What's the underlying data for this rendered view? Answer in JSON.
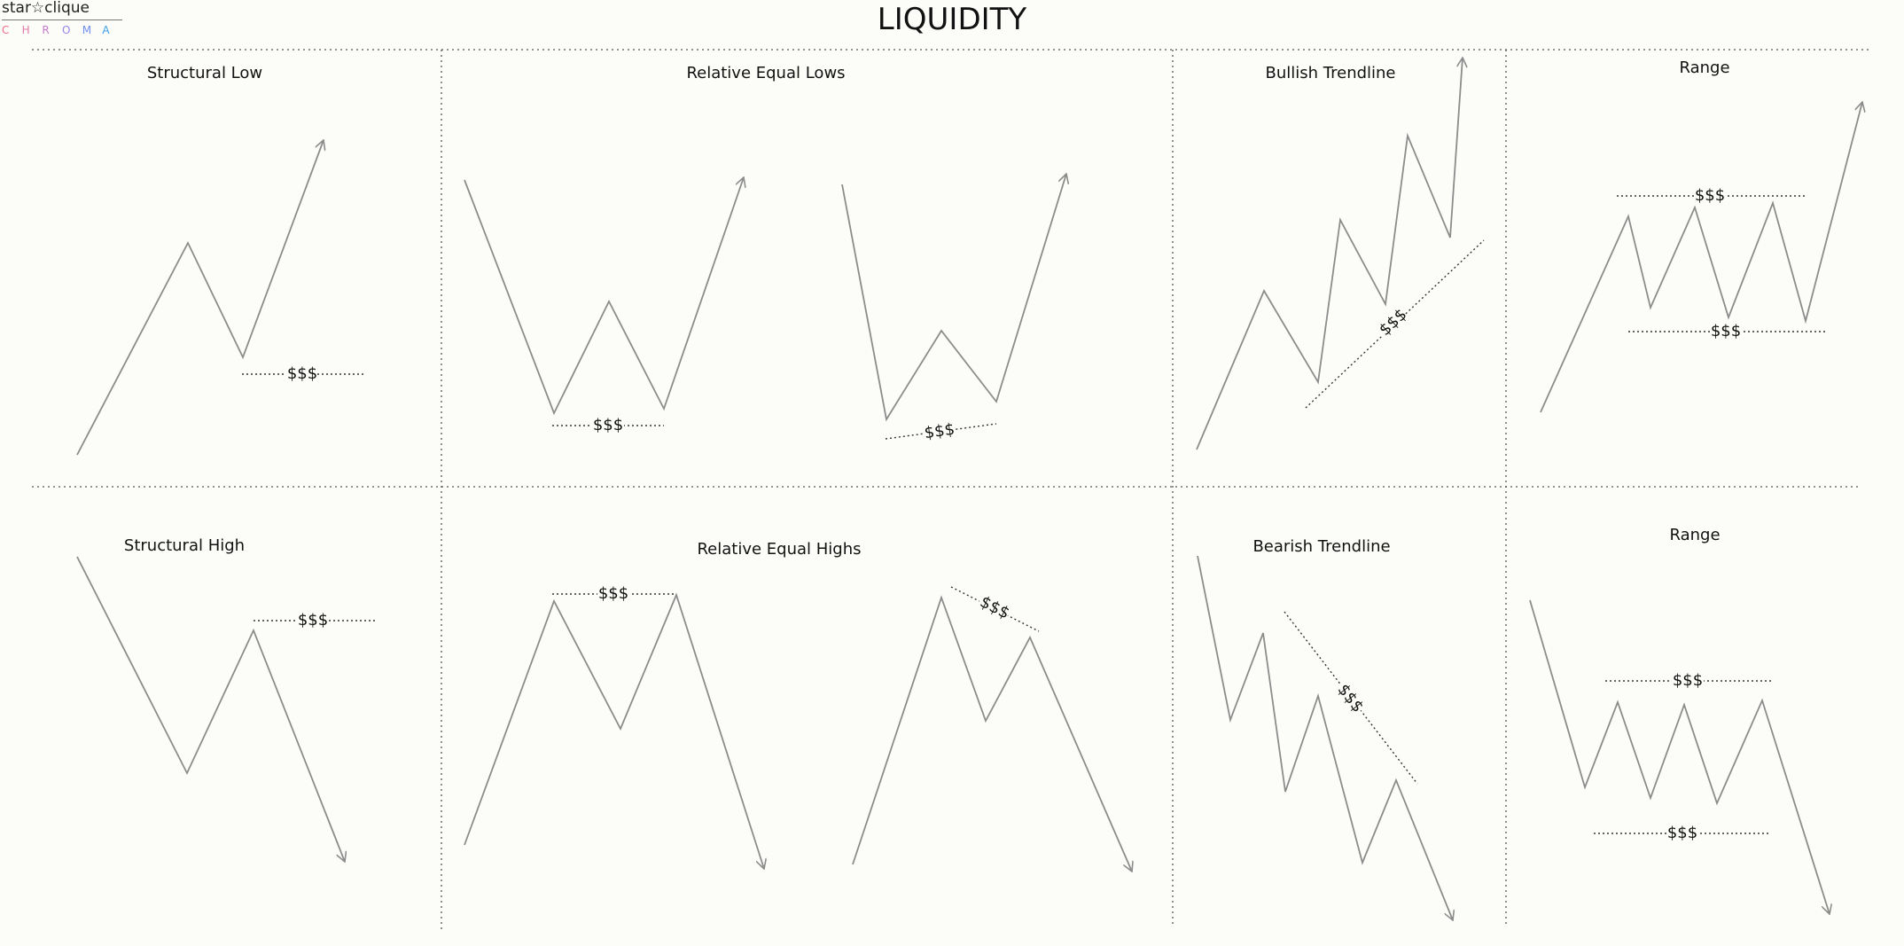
{
  "logo": {
    "name": "star☆clique",
    "subtitle_letters": [
      {
        "char": "C",
        "color": "#f06b8a"
      },
      {
        "char": "H",
        "color": "#e27aa8"
      },
      {
        "char": "R",
        "color": "#c77ccf"
      },
      {
        "char": "O",
        "color": "#9a84e6"
      },
      {
        "char": "M",
        "color": "#6f8ff0"
      },
      {
        "char": "A",
        "color": "#3f9ee8"
      }
    ]
  },
  "title": "LIQUIDITY",
  "liquidity_label": "$$$",
  "panels": [
    {
      "id": "structural-low",
      "title": "Structural Low"
    },
    {
      "id": "relative-equal-lows",
      "title": "Relative Equal Lows"
    },
    {
      "id": "bullish-trendline",
      "title": "Bullish Trendline"
    },
    {
      "id": "range-top",
      "title": "Range"
    },
    {
      "id": "structural-high",
      "title": "Structural High"
    },
    {
      "id": "relative-equal-highs",
      "title": "Relative Equal Highs"
    },
    {
      "id": "bearish-trendline",
      "title": "Bearish Trendline"
    },
    {
      "id": "range-bottom",
      "title": "Range"
    }
  ],
  "colors": {
    "price_line": "#8c8c8c",
    "level_line": "#333333",
    "divider": "#555555"
  }
}
